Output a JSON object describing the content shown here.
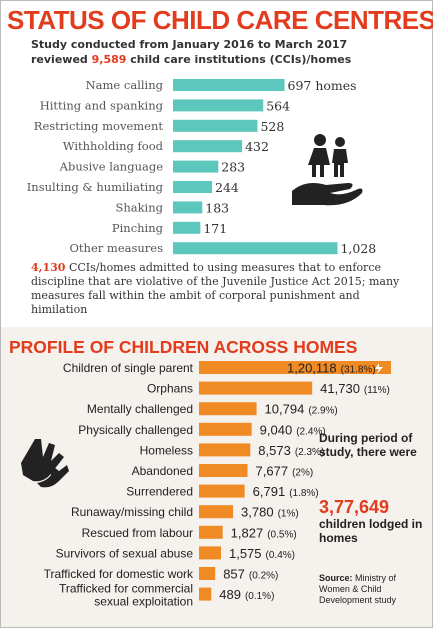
{
  "top": {
    "title": "STATUS OF CHILD CARE CENTRES",
    "subtitle_line1": "Study conducted from January 2016 to March 2017",
    "subtitle_pre": "reviewed ",
    "subtitle_number": "9,589",
    "subtitle_post": " child care institutions (CCIs)/homes",
    "note_number": "4,130",
    "note_text": " CCIs/homes admitted to using measures that to enforce discipline that are violative of the Juvenile Justice Act 2015; many measures fall within the ambit of corporal punishment and himilation"
  },
  "bottom": {
    "title": "PROFILE OF CHILDREN ACROSS HOMES",
    "side_note": "During period of study, there were",
    "side_number": "3,77,649",
    "side_note2": "children lodged in homes",
    "source_label": "Source:",
    "source_text": " Ministry of Women & Child Development study"
  },
  "colors": {
    "accent": "#e23b1d",
    "teal": "#5cc7bd",
    "orange": "#f08a24",
    "panel": "#f5f1ec"
  },
  "icons": {
    "top": "children-on-hand-icon",
    "bottom": "hands-icon",
    "flash": "lightning-icon"
  },
  "chart_data": [
    {
      "type": "bar",
      "orientation": "horizontal",
      "categories": [
        "Name calling",
        "Hitting and spanking",
        "Restricting movement",
        "Withholding food",
        "Abusive language",
        "Insulting & humiliating",
        "Shaking",
        "Pinching",
        "Other measures"
      ],
      "values": [
        697,
        564,
        528,
        432,
        283,
        244,
        183,
        171,
        1028
      ],
      "value_labels": [
        "697 homes",
        "564",
        "528",
        "432",
        "283",
        "244",
        "183",
        "171",
        "1,028"
      ],
      "xlim": [
        0,
        1100
      ]
    },
    {
      "type": "bar",
      "orientation": "horizontal",
      "categories": [
        "Children of single parent",
        "Orphans",
        "Mentally challenged",
        "Physically challenged",
        "Homeless",
        "Abandoned",
        "Surrendered",
        "Runaway/missing child",
        "Rescued from labour",
        "Survivors of sexual abuse",
        "Trafficked for domestic work",
        "Trafficked for commercial sexual exploitation"
      ],
      "values": [
        120118,
        41730,
        10794,
        9040,
        8573,
        7677,
        6791,
        3780,
        1827,
        1575,
        857,
        489
      ],
      "value_labels": [
        "1,20,118",
        "41,730",
        "10,794",
        "9,040",
        "8,573",
        "7,677",
        "6,791",
        "3,780",
        "1,827",
        "1,575",
        "857",
        "489"
      ],
      "percent_labels": [
        "(31.8%)",
        "(11%)",
        "(2.9%)",
        "(2.4%)",
        "(2.3%)",
        "(2%)",
        "(1.8%)",
        "(1%)",
        "(0.5%)",
        "(0.4%)",
        "(0.2%)",
        "(0.1%)"
      ]
    }
  ]
}
